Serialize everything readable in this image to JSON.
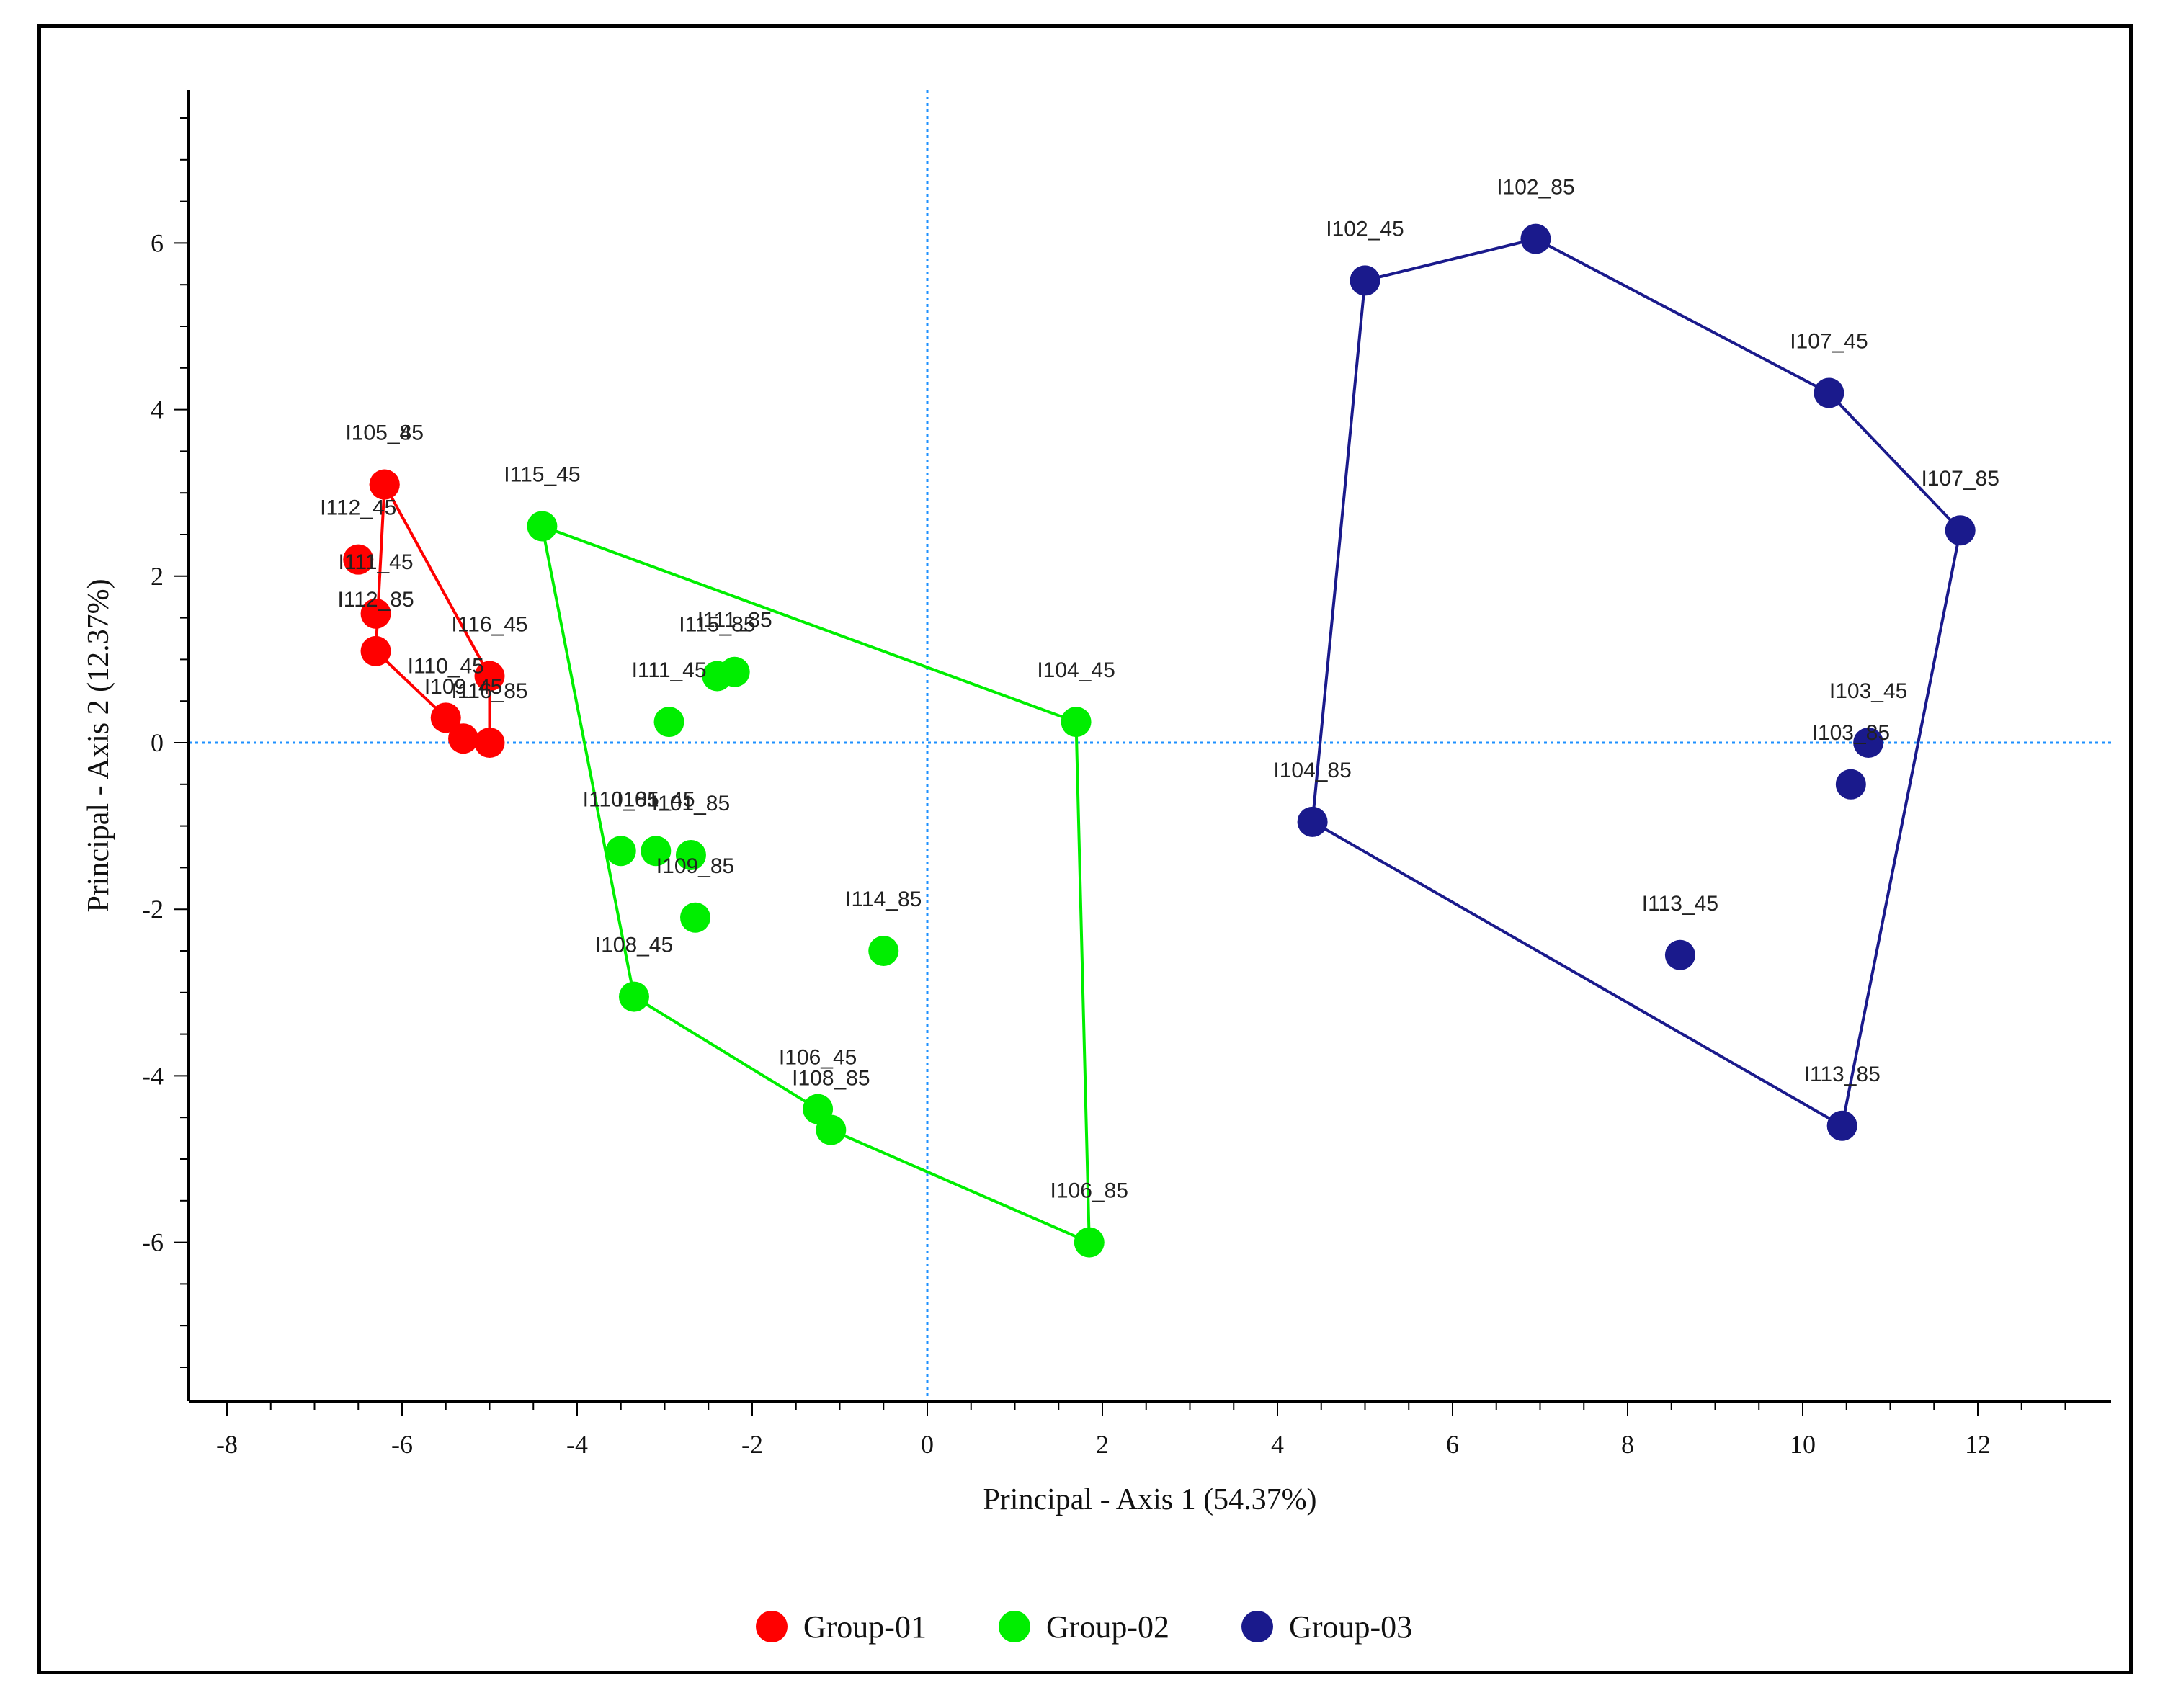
{
  "chart_data": {
    "type": "scatter",
    "title": "",
    "xlabel": "Principal - Axis 1 (54.37%)",
    "ylabel": "Principal - Axis 2 (12.37%)",
    "xlim": [
      -8.5,
      13.5
    ],
    "ylim": [
      -7.8,
      7.8
    ],
    "xticks": [
      -8,
      -6,
      -4,
      -2,
      0,
      2,
      4,
      6,
      8,
      10,
      12
    ],
    "yticks": [
      -6,
      -4,
      -2,
      0,
      2,
      4,
      6
    ],
    "reference_lines": {
      "x": 0,
      "y": 0
    },
    "legend_position": "bottom-center",
    "series": [
      {
        "name": "Group-01",
        "color": "#ff0000",
        "hull": [
          "I105_45",
          "I116_45",
          "I116_85",
          "I110_45",
          "I112_85"
        ],
        "points": [
          {
            "label": "I105_45",
            "x": -6.2,
            "y": 3.1
          },
          {
            "label": "I105_85",
            "x": -6.2,
            "y": 3.1
          },
          {
            "label": "I112_45",
            "x": -6.5,
            "y": 2.2
          },
          {
            "label": "I111_45",
            "x": -6.3,
            "y": 1.55
          },
          {
            "label": "I112_85",
            "x": -6.3,
            "y": 1.1
          },
          {
            "label": "I116_45",
            "x": -5.0,
            "y": 0.8
          },
          {
            "label": "I110_45",
            "x": -5.5,
            "y": 0.3
          },
          {
            "label": "I109_45",
            "x": -5.3,
            "y": 0.05
          },
          {
            "label": "I116_85",
            "x": -5.0,
            "y": 0.0
          }
        ]
      },
      {
        "name": "Group-02",
        "color": "#00ee00",
        "hull": [
          "I115_45",
          "I104_45",
          "I106_85",
          "I108_85",
          "I106_45",
          "I108_45"
        ],
        "points": [
          {
            "label": "I115_45",
            "x": -4.4,
            "y": 2.6
          },
          {
            "label": "I115_85",
            "x": -2.4,
            "y": 0.8
          },
          {
            "label": "I111_85",
            "x": -2.2,
            "y": 0.85
          },
          {
            "label": "I111_45",
            "x": -2.95,
            "y": 0.25
          },
          {
            "label": "I104_45",
            "x": 1.7,
            "y": 0.25
          },
          {
            "label": "I110_85",
            "x": -3.5,
            "y": -1.3
          },
          {
            "label": "I101_45",
            "x": -3.1,
            "y": -1.3
          },
          {
            "label": "I101_85",
            "x": -2.7,
            "y": -1.35
          },
          {
            "label": "I109_85",
            "x": -2.65,
            "y": -2.1
          },
          {
            "label": "I114_85",
            "x": -0.5,
            "y": -2.5
          },
          {
            "label": "I108_45",
            "x": -3.35,
            "y": -3.05
          },
          {
            "label": "I106_45",
            "x": -1.25,
            "y": -4.4
          },
          {
            "label": "I108_85",
            "x": -1.1,
            "y": -4.65
          },
          {
            "label": "I106_85",
            "x": 1.85,
            "y": -6.0
          }
        ]
      },
      {
        "name": "Group-03",
        "color": "#1a1a8c",
        "hull": [
          "I102_45",
          "I102_85",
          "I107_45",
          "I107_85",
          "I113_85",
          "I104_85"
        ],
        "points": [
          {
            "label": "I102_45",
            "x": 5.0,
            "y": 5.55
          },
          {
            "label": "I102_85",
            "x": 6.95,
            "y": 6.05
          },
          {
            "label": "I107_45",
            "x": 10.3,
            "y": 4.2
          },
          {
            "label": "I107_85",
            "x": 11.8,
            "y": 2.55
          },
          {
            "label": "I103_45",
            "x": 10.75,
            "y": 0.0
          },
          {
            "label": "I103_85",
            "x": 10.55,
            "y": -0.5
          },
          {
            "label": "I104_85",
            "x": 4.4,
            "y": -0.95
          },
          {
            "label": "I113_45",
            "x": 8.6,
            "y": -2.55
          },
          {
            "label": "I113_85",
            "x": 10.45,
            "y": -4.6
          }
        ]
      }
    ]
  }
}
